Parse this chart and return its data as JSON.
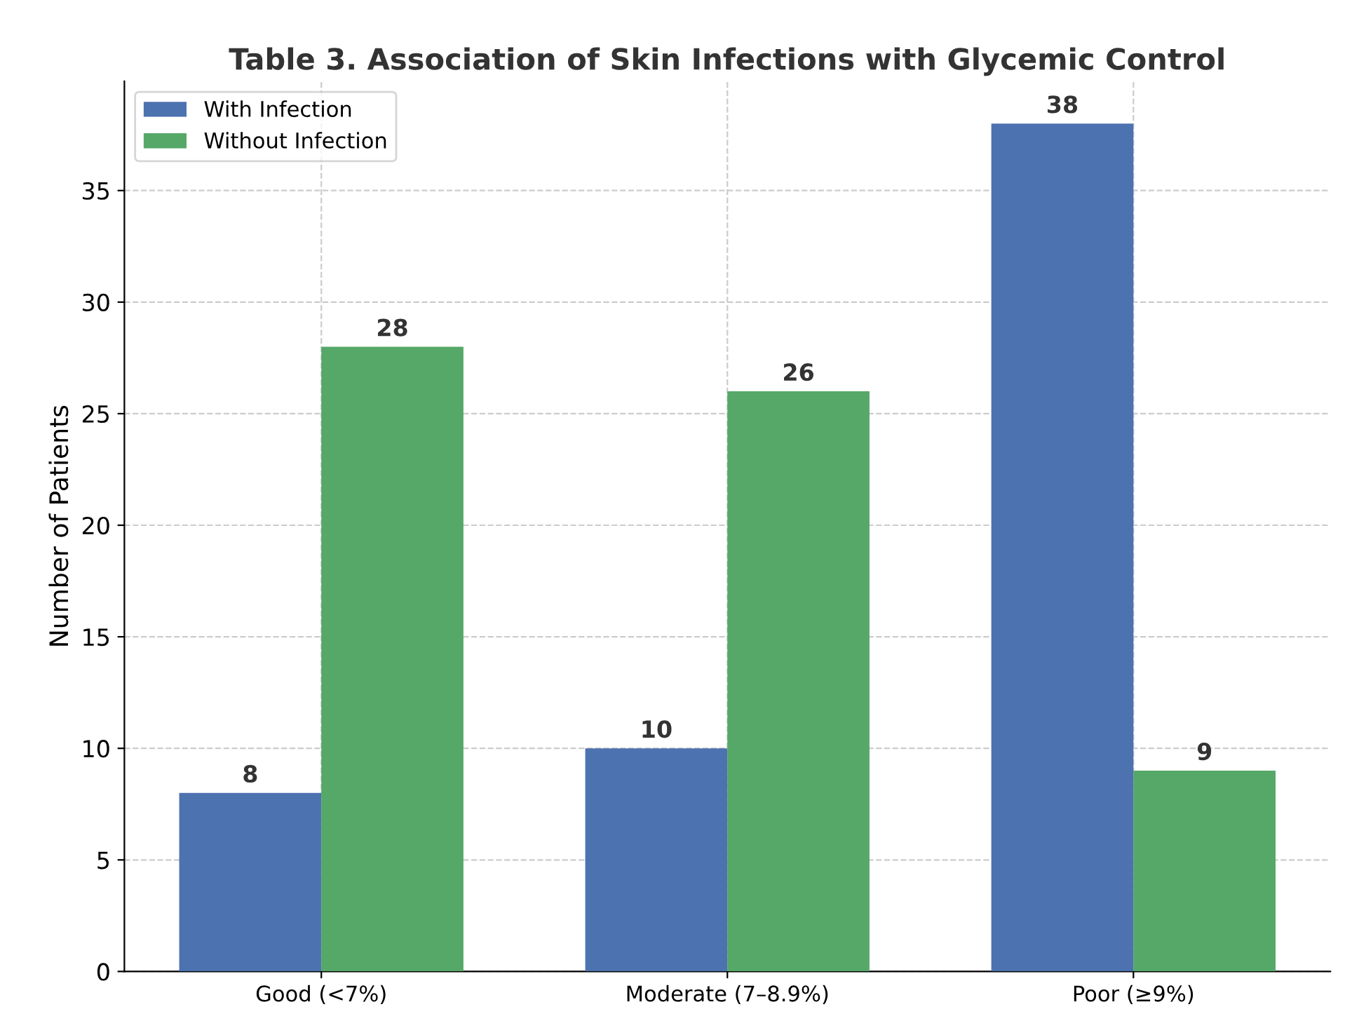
{
  "chart_data": {
    "type": "bar",
    "title": "Table 3. Association of Skin Infections with Glycemic Control",
    "ylabel": "Number of Patients",
    "categories": [
      "Good (<7%)",
      "Moderate (7–8.9%)",
      "Poor (≥9%)"
    ],
    "series": [
      {
        "name": "With Infection",
        "color": "#4c72b0",
        "values": [
          8,
          10,
          38
        ]
      },
      {
        "name": "Without Infection",
        "color": "#55a868",
        "values": [
          28,
          26,
          9
        ]
      }
    ],
    "ylim": [
      0,
      39.9
    ],
    "yticks": [
      0,
      5,
      10,
      15,
      20,
      25,
      30,
      35
    ],
    "grid": true,
    "legend": "top left",
    "data_labels": true
  }
}
